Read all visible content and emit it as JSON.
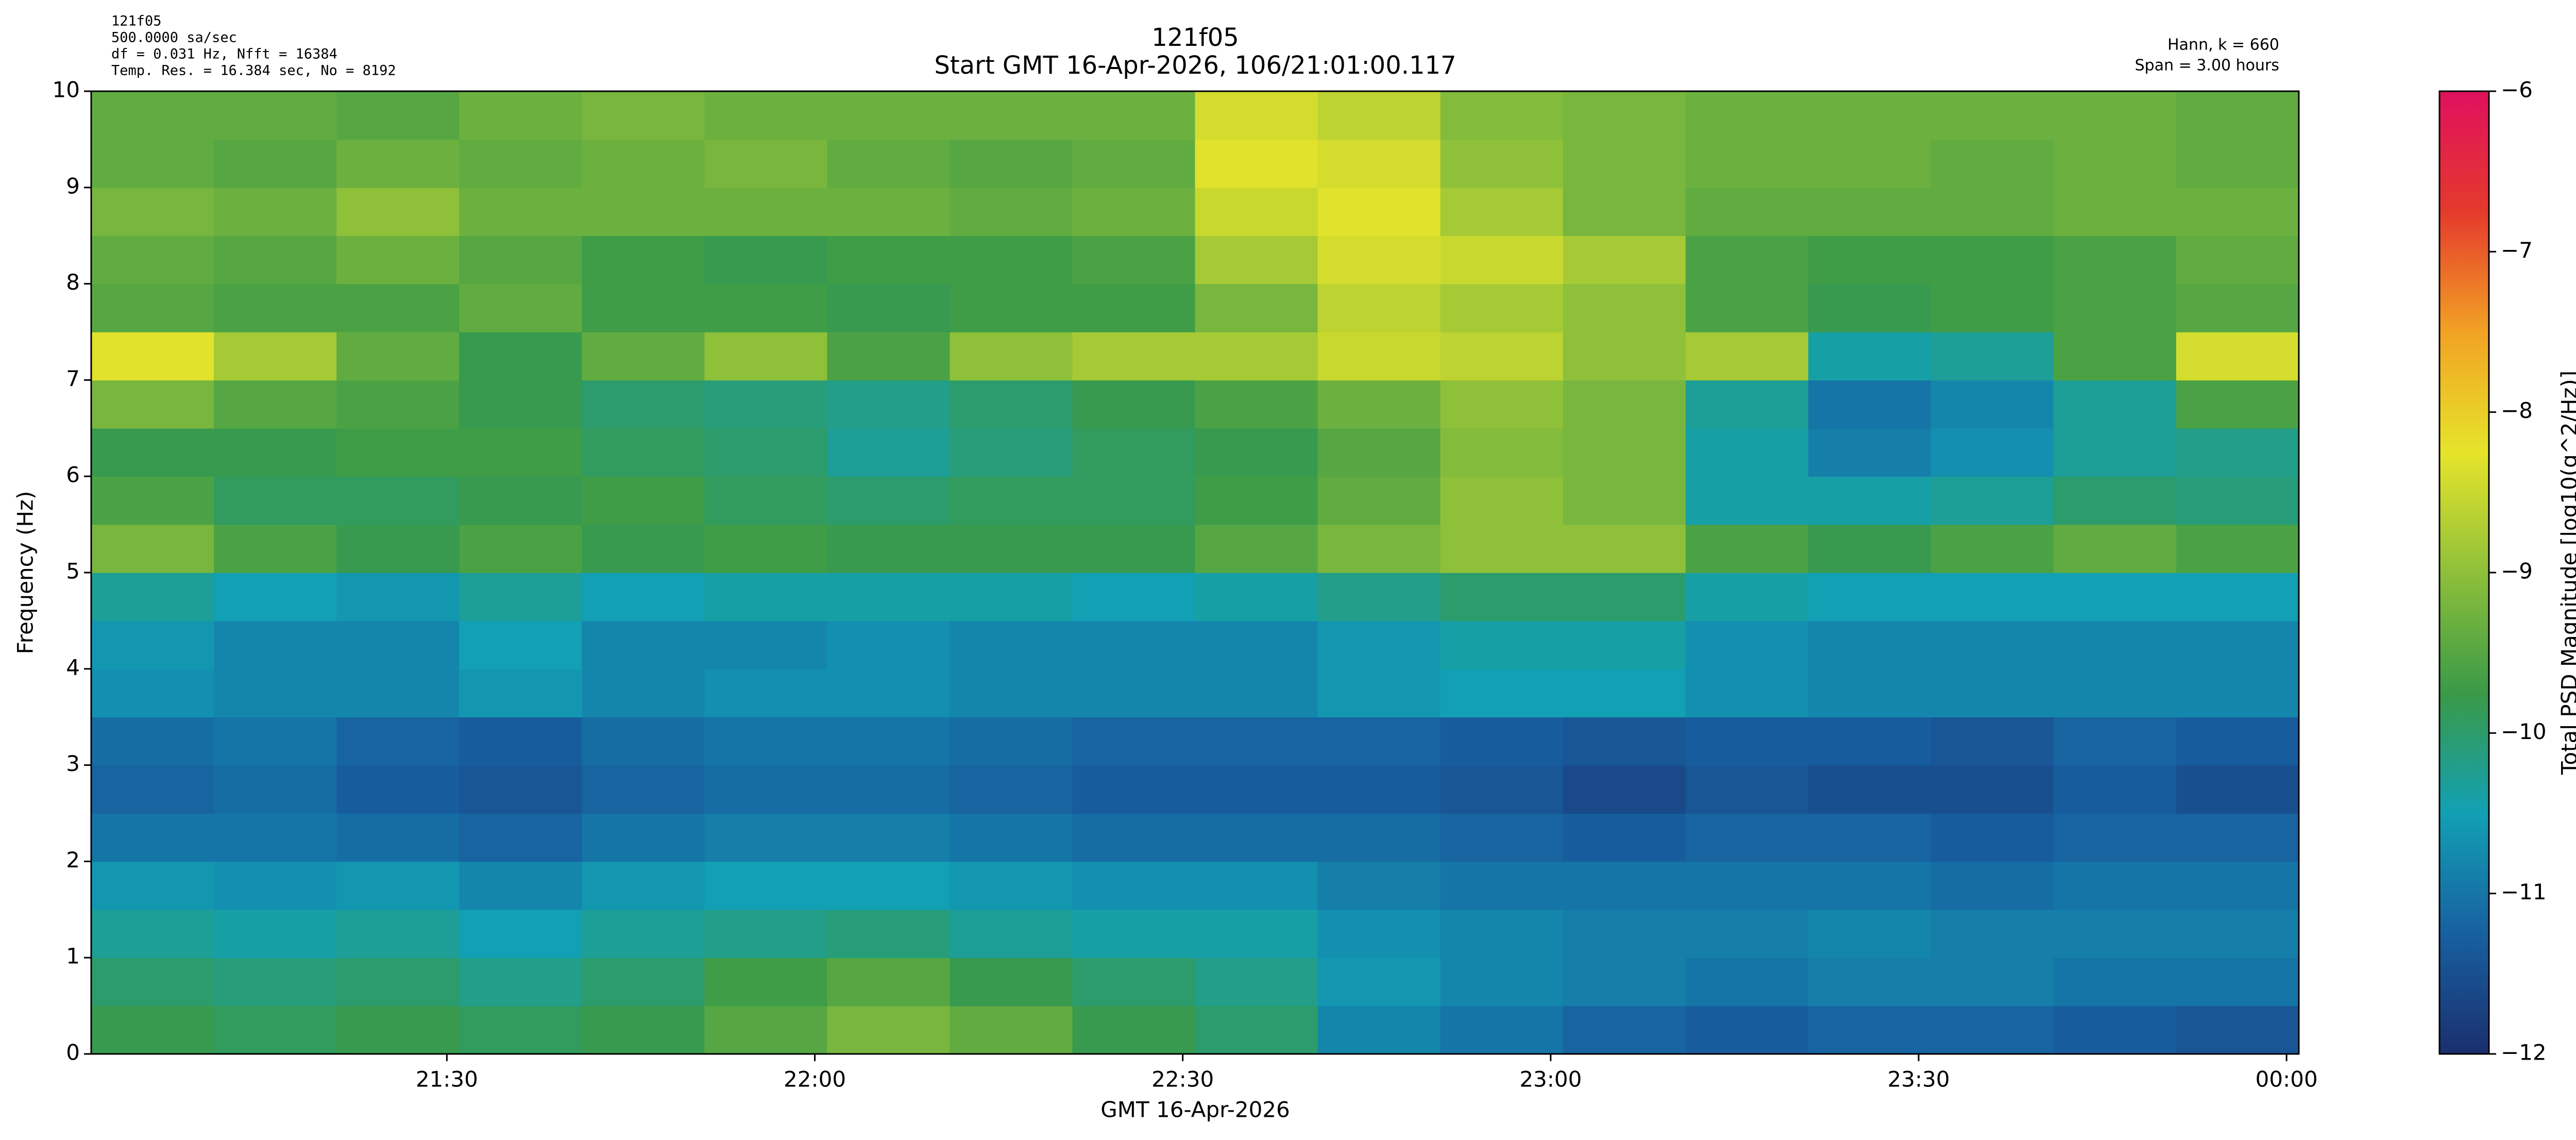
{
  "chart_data": {
    "type": "heatmap",
    "title": "121f05",
    "subtitle": "Start GMT 16-Apr-2026, 106/21:01:00.117",
    "info_left": [
      "121f05",
      "500.0000 sa/sec",
      "df = 0.031 Hz,  Nfft = 16384",
      "Temp. Res. = 16.384 sec, No = 8192"
    ],
    "info_right": [
      "Hann, k = 660",
      "Span = 3.00 hours"
    ],
    "xlabel": "GMT 16-Apr-2026",
    "ylabel": "Frequency (Hz)",
    "colorbar_label": "Total PSD Magnitude [log10(g^2/Hz)]",
    "x": [
      1261,
      1271,
      1281,
      1291,
      1301,
      1311,
      1321,
      1331,
      1341,
      1351,
      1361,
      1371,
      1381,
      1391,
      1401,
      1411,
      1421,
      1431,
      1441
    ],
    "y": [
      0,
      0.5,
      1,
      1.5,
      2,
      2.5,
      3,
      3.5,
      4,
      4.5,
      5,
      5.5,
      6,
      6.5,
      7,
      7.5,
      8,
      8.5,
      9,
      9.5,
      10
    ],
    "z": [
      [
        -9.8,
        -9.9,
        -9.8,
        -9.9,
        -9.8,
        -9.5,
        -9.2,
        -9.4,
        -9.8,
        -10.0,
        -10.8,
        -11.0,
        -11.2,
        -11.3,
        -11.2,
        -11.2,
        -11.3,
        -11.4
      ],
      [
        -10.0,
        -10.1,
        -10.0,
        -10.2,
        -10.0,
        -9.7,
        -9.5,
        -9.8,
        -10.0,
        -10.2,
        -10.6,
        -10.8,
        -10.9,
        -11.0,
        -10.9,
        -10.9,
        -11.0,
        -11.0
      ],
      [
        -10.3,
        -10.4,
        -10.3,
        -10.5,
        -10.3,
        -10.2,
        -10.1,
        -10.3,
        -10.4,
        -10.4,
        -10.7,
        -10.8,
        -10.9,
        -10.9,
        -10.8,
        -10.9,
        -10.9,
        -10.9
      ],
      [
        -10.6,
        -10.7,
        -10.6,
        -10.8,
        -10.6,
        -10.5,
        -10.5,
        -10.6,
        -10.7,
        -10.7,
        -10.9,
        -11.0,
        -11.0,
        -11.0,
        -11.0,
        -11.1,
        -11.0,
        -11.0
      ],
      [
        -11.0,
        -11.0,
        -11.1,
        -11.2,
        -11.0,
        -10.9,
        -10.9,
        -11.0,
        -11.1,
        -11.1,
        -11.1,
        -11.2,
        -11.3,
        -11.2,
        -11.2,
        -11.3,
        -11.2,
        -11.2
      ],
      [
        -11.2,
        -11.1,
        -11.3,
        -11.4,
        -11.2,
        -11.1,
        -11.1,
        -11.2,
        -11.3,
        -11.3,
        -11.3,
        -11.4,
        -11.6,
        -11.4,
        -11.5,
        -11.5,
        -11.3,
        -11.5
      ],
      [
        -11.1,
        -11.0,
        -11.2,
        -11.3,
        -11.1,
        -11.0,
        -11.0,
        -11.1,
        -11.2,
        -11.2,
        -11.2,
        -11.3,
        -11.4,
        -11.3,
        -11.3,
        -11.4,
        -11.2,
        -11.3
      ],
      [
        -10.7,
        -10.8,
        -10.8,
        -10.6,
        -10.8,
        -10.7,
        -10.7,
        -10.8,
        -10.8,
        -10.8,
        -10.6,
        -10.5,
        -10.5,
        -10.7,
        -10.8,
        -10.8,
        -10.8,
        -10.8
      ],
      [
        -10.6,
        -10.8,
        -10.8,
        -10.5,
        -10.8,
        -10.8,
        -10.7,
        -10.8,
        -10.8,
        -10.8,
        -10.6,
        -10.4,
        -10.4,
        -10.7,
        -10.8,
        -10.8,
        -10.8,
        -10.8
      ],
      [
        -10.3,
        -10.5,
        -10.6,
        -10.3,
        -10.5,
        -10.4,
        -10.4,
        -10.4,
        -10.5,
        -10.4,
        -10.2,
        -10.0,
        -10.0,
        -10.4,
        -10.5,
        -10.5,
        -10.5,
        -10.5
      ],
      [
        -9.2,
        -9.6,
        -9.8,
        -9.6,
        -9.8,
        -9.7,
        -9.8,
        -9.8,
        -9.8,
        -9.5,
        -9.2,
        -9.0,
        -9.0,
        -9.6,
        -9.8,
        -9.6,
        -9.4,
        -9.6
      ],
      [
        -9.6,
        -9.9,
        -9.9,
        -9.8,
        -9.7,
        -9.9,
        -10.0,
        -9.9,
        -9.9,
        -9.7,
        -9.4,
        -9.0,
        -9.2,
        -10.4,
        -10.4,
        -10.3,
        -10.0,
        -10.1
      ],
      [
        -9.8,
        -9.8,
        -9.7,
        -9.7,
        -9.9,
        -10.0,
        -10.3,
        -10.1,
        -9.9,
        -9.8,
        -9.5,
        -9.1,
        -9.2,
        -10.4,
        -10.9,
        -10.7,
        -10.3,
        -10.2
      ],
      [
        -9.2,
        -9.5,
        -9.6,
        -9.8,
        -10.0,
        -10.1,
        -10.2,
        -10.0,
        -9.8,
        -9.6,
        -9.3,
        -9.0,
        -9.2,
        -10.3,
        -11.0,
        -10.8,
        -10.3,
        -9.6
      ],
      [
        -8.3,
        -8.8,
        -9.4,
        -9.8,
        -9.4,
        -9.0,
        -9.6,
        -9.0,
        -8.8,
        -8.8,
        -8.5,
        -8.6,
        -9.0,
        -8.8,
        -10.4,
        -10.3,
        -9.6,
        -8.4
      ],
      [
        -9.5,
        -9.6,
        -9.6,
        -9.4,
        -9.7,
        -9.7,
        -9.8,
        -9.7,
        -9.7,
        -9.2,
        -8.6,
        -8.8,
        -9.0,
        -9.6,
        -9.8,
        -9.7,
        -9.6,
        -9.5
      ],
      [
        -9.4,
        -9.5,
        -9.3,
        -9.5,
        -9.7,
        -9.8,
        -9.7,
        -9.7,
        -9.6,
        -8.8,
        -8.4,
        -8.5,
        -8.8,
        -9.6,
        -9.7,
        -9.7,
        -9.6,
        -9.4
      ],
      [
        -9.2,
        -9.3,
        -9.0,
        -9.3,
        -9.3,
        -9.3,
        -9.3,
        -9.4,
        -9.3,
        -8.5,
        -8.3,
        -8.8,
        -9.2,
        -9.4,
        -9.4,
        -9.4,
        -9.3,
        -9.3
      ],
      [
        -9.4,
        -9.5,
        -9.3,
        -9.4,
        -9.3,
        -9.2,
        -9.4,
        -9.5,
        -9.4,
        -8.3,
        -8.4,
        -9.0,
        -9.2,
        -9.3,
        -9.3,
        -9.4,
        -9.3,
        -9.4
      ],
      [
        -9.4,
        -9.4,
        -9.5,
        -9.3,
        -9.2,
        -9.3,
        -9.3,
        -9.3,
        -9.3,
        -8.4,
        -8.6,
        -9.1,
        -9.2,
        -9.3,
        -9.3,
        -9.3,
        -9.3,
        -9.4
      ]
    ],
    "xlim": [
      1261,
      1441
    ],
    "xticks": [
      {
        "value": 1290,
        "label": "21:30"
      },
      {
        "value": 1320,
        "label": "22:00"
      },
      {
        "value": 1350,
        "label": "22:30"
      },
      {
        "value": 1380,
        "label": "23:00"
      },
      {
        "value": 1410,
        "label": "23:30"
      },
      {
        "value": 1440,
        "label": "00:00"
      }
    ],
    "ylim": [
      0,
      10
    ],
    "yticks": [
      0,
      1,
      2,
      3,
      4,
      5,
      6,
      7,
      8,
      9,
      10
    ],
    "clim": [
      -12,
      -6
    ],
    "cticks": [
      {
        "value": -6,
        "label": "−6"
      },
      {
        "value": -7,
        "label": "−7"
      },
      {
        "value": -8,
        "label": "−8"
      },
      {
        "value": -9,
        "label": "−9"
      },
      {
        "value": -10,
        "label": "−10"
      },
      {
        "value": -11,
        "label": "−11"
      },
      {
        "value": -12,
        "label": "−12"
      }
    ],
    "colormap": [
      "#1b2f6e",
      "#1760a0",
      "#12a0b4",
      "#3a9a48",
      "#8ec03a",
      "#e6e42a",
      "#f2a224",
      "#e43a2c",
      "#e0105e"
    ],
    "title_color": "#1a1a80"
  }
}
